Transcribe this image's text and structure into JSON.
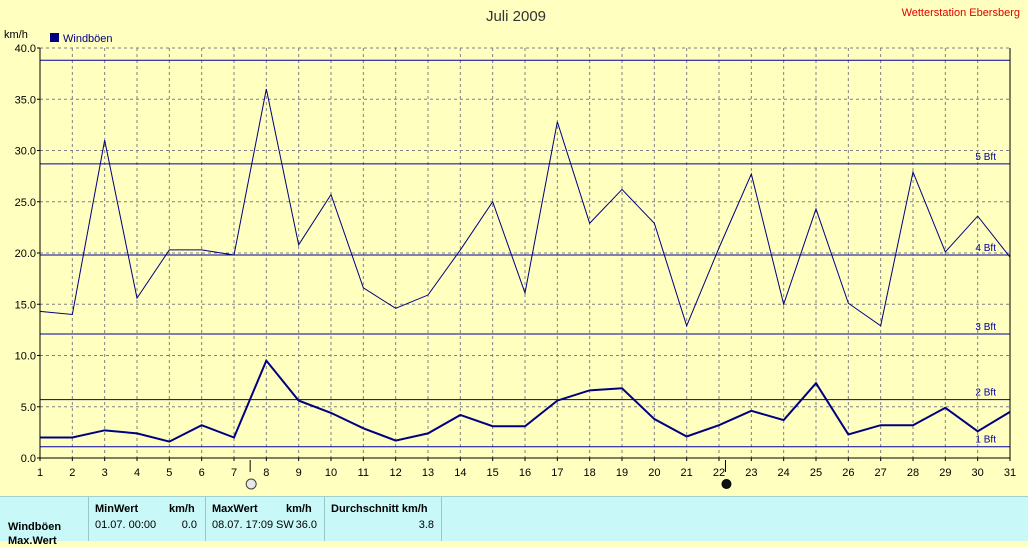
{
  "header": {
    "title": "Juli 2009",
    "station": "Wetterstation Ebersberg",
    "unit_label": "km/h"
  },
  "legend": [
    {
      "name": "Windböen",
      "color": "#000080"
    }
  ],
  "chart_data": {
    "type": "line",
    "title": "Juli 2009",
    "ylabel": "km/h",
    "xlabel": "",
    "ylim": [
      0,
      40
    ],
    "xlim": [
      1,
      31
    ],
    "grid": true,
    "legend_position": "top-left",
    "x": [
      1,
      2,
      3,
      4,
      5,
      6,
      7,
      8,
      9,
      10,
      11,
      12,
      13,
      14,
      15,
      16,
      17,
      18,
      19,
      20,
      21,
      22,
      23,
      24,
      25,
      26,
      27,
      28,
      29,
      30,
      31
    ],
    "x_tick_labels": [
      "1",
      "2",
      "3",
      "4",
      "5",
      "6",
      "7",
      "8",
      "9",
      "10",
      "11",
      "12",
      "13",
      "14",
      "15",
      "16",
      "17",
      "18",
      "19",
      "20",
      "21",
      "22",
      "23",
      "24",
      "25",
      "26",
      "27",
      "28",
      "29",
      "30",
      "31"
    ],
    "y_ticks": [
      0,
      5,
      10,
      15,
      20,
      25,
      30,
      35,
      40
    ],
    "y_tick_labels": [
      "0.0",
      "5.0",
      "10.0",
      "15.0",
      "20.0",
      "25.0",
      "30.0",
      "35.0",
      "40.0"
    ],
    "series": [
      {
        "name": "Windböen",
        "color": "#000080",
        "line_width": 1,
        "values": [
          14.3,
          14.0,
          31.0,
          15.6,
          20.3,
          20.3,
          19.8,
          36.0,
          20.8,
          25.7,
          16.6,
          14.6,
          15.9,
          20.3,
          25.0,
          16.1,
          32.8,
          22.9,
          26.2,
          22.9,
          12.9,
          20.5,
          27.7,
          15.0,
          24.3,
          15.1,
          12.9,
          27.9,
          20.1,
          23.6,
          19.6
        ]
      },
      {
        "values": [
          2.0,
          2.0,
          2.7,
          2.4,
          1.6,
          3.2,
          2.0,
          9.5,
          5.6,
          4.4,
          2.9,
          1.7,
          2.4,
          4.2,
          3.1,
          3.1,
          5.6,
          6.6,
          6.8,
          3.8,
          2.1,
          3.2,
          4.6,
          3.7,
          7.3,
          2.3,
          3.2,
          3.2,
          4.9,
          2.6,
          4.5
        ],
        "color": "#000080",
        "line_width": 2
      }
    ],
    "reference_lines": [
      {
        "label": "1 Bft",
        "value": 1.1
      },
      {
        "label": "2 Bft",
        "value": 5.7
      },
      {
        "label": "3 Bft",
        "value": 12.1
      },
      {
        "label": "4 Bft",
        "value": 19.8
      },
      {
        "label": "5 Bft",
        "value": 28.7
      },
      {
        "label": "",
        "value": 38.8
      }
    ],
    "markers": [
      {
        "x": 7.5,
        "symbol": "full-moon"
      },
      {
        "x": 22.2,
        "symbol": "new-moon"
      }
    ]
  },
  "stats": {
    "row_labels": [
      "Windböen",
      "Max.Wert"
    ],
    "min_header": "MinWert",
    "min_unit": "km/h",
    "min_date": "01.07.  00:00",
    "min_value": "0.0",
    "max_header": "MaxWert",
    "max_unit": "km/h",
    "max_date": "08.07.  17:09",
    "max_dir": "SW",
    "max_value": "36.0",
    "avg_header": "Durchschnitt km/h",
    "avg_value": "3.8"
  }
}
